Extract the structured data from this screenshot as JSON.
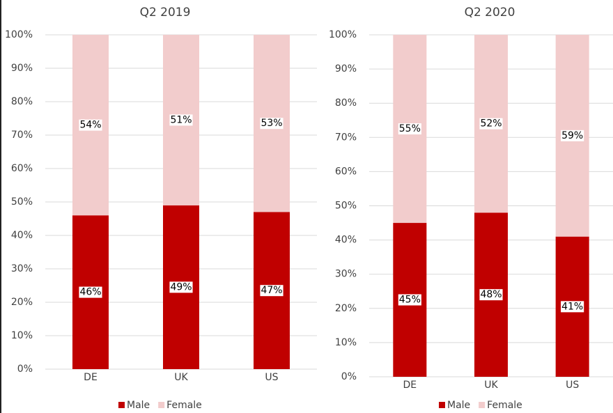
{
  "chart_data": [
    {
      "type": "bar",
      "stacked": true,
      "title": "Q2 2019",
      "categories": [
        "DE",
        "UK",
        "US"
      ],
      "series": [
        {
          "name": "Male",
          "color": "#c00000",
          "values": [
            46,
            49,
            47
          ],
          "value_labels": [
            "46%",
            "49%",
            "47%"
          ]
        },
        {
          "name": "Female",
          "color": "#f2cccc",
          "values": [
            54,
            51,
            53
          ],
          "value_labels": [
            "54%",
            "51%",
            "53%"
          ]
        }
      ],
      "ylim": [
        0,
        100
      ],
      "yticks": [
        {
          "value": 0,
          "label": "0%"
        },
        {
          "value": 10,
          "label": "10%"
        },
        {
          "value": 20,
          "label": "20%"
        },
        {
          "value": 30,
          "label": "30%"
        },
        {
          "value": 40,
          "label": "40%"
        },
        {
          "value": 50,
          "label": "50%"
        },
        {
          "value": 60,
          "label": "60%"
        },
        {
          "value": 70,
          "label": "70%"
        },
        {
          "value": 80,
          "label": "80%"
        },
        {
          "value": 90,
          "label": "90%"
        },
        {
          "value": 100,
          "label": "100%"
        }
      ],
      "grid": true,
      "legend": "bottom"
    },
    {
      "type": "bar",
      "stacked": true,
      "title": "Q2 2020",
      "categories": [
        "DE",
        "UK",
        "US"
      ],
      "series": [
        {
          "name": "Male",
          "color": "#c00000",
          "values": [
            45,
            48,
            41
          ],
          "value_labels": [
            "45%",
            "48%",
            "41%"
          ]
        },
        {
          "name": "Female",
          "color": "#f2cccc",
          "values": [
            55,
            52,
            59
          ],
          "value_labels": [
            "55%",
            "52%",
            "59%"
          ]
        }
      ],
      "ylim": [
        0,
        100
      ],
      "yticks": [
        {
          "value": 0,
          "label": "0%"
        },
        {
          "value": 10,
          "label": "10%"
        },
        {
          "value": 20,
          "label": "20%"
        },
        {
          "value": 30,
          "label": "30%"
        },
        {
          "value": 40,
          "label": "40%"
        },
        {
          "value": 50,
          "label": "50%"
        },
        {
          "value": 60,
          "label": "60%"
        },
        {
          "value": 70,
          "label": "70%"
        },
        {
          "value": 80,
          "label": "80%"
        },
        {
          "value": 90,
          "label": "90%"
        },
        {
          "value": 100,
          "label": "100%"
        }
      ],
      "grid": true,
      "legend": "bottom"
    }
  ]
}
